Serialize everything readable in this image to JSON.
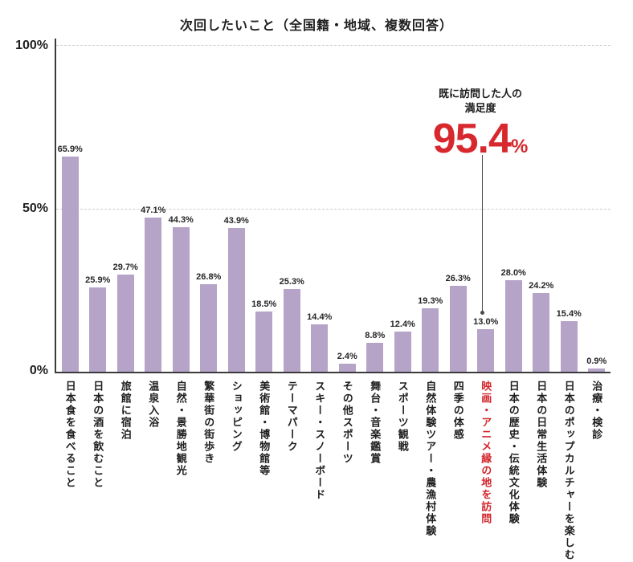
{
  "title": "次回したいこと（全国籍・地域、複数回答）",
  "colors": {
    "bar": "#b5a3c8",
    "highlight_red": "#d2262c",
    "annotation_red": "#d7282e",
    "axis": "#3b3b3b",
    "grid": "#cccccc",
    "text": "#1f1f1f"
  },
  "annotation": {
    "note_line1": "既に訪問した人の",
    "note_line2": "満足度",
    "value": "95.4",
    "unit": "%",
    "target_category": "映画・アニメ縁の地を訪問"
  },
  "chart_data": {
    "type": "bar",
    "title": "次回したいこと（全国籍・地域、複数回答）",
    "categories": [
      "日本食を食べること",
      "日本の酒を飲むこと",
      "旅館に宿泊",
      "温泉入浴",
      "自然・景勝地観光",
      "繁華街の街歩き",
      "ショッピング",
      "美術館・博物館等",
      "テーマパーク",
      "スキー・スノーボード",
      "その他スポーツ",
      "舞台・音楽鑑賞",
      "スポーツ観戦",
      "自然体験ツアー・農漁村体験",
      "四季の体感",
      "映画・アニメ縁の地を訪問",
      "日本の歴史・伝統文化体験",
      "日本の日常生活体験",
      "日本のポップカルチャーを楽しむ",
      "治療・検診"
    ],
    "values": [
      65.9,
      25.9,
      29.7,
      47.1,
      44.3,
      26.8,
      43.9,
      18.5,
      25.3,
      14.4,
      2.4,
      8.8,
      12.4,
      19.3,
      26.3,
      13.0,
      28.0,
      24.2,
      15.4,
      0.9
    ],
    "highlight_index": 15,
    "xlabel": "",
    "ylabel": "",
    "ylim": [
      0,
      100
    ],
    "yticks": [
      "100%",
      "50%",
      "0%"
    ],
    "grid": "horizontal dashed at 50% and 100%",
    "legend": false
  }
}
